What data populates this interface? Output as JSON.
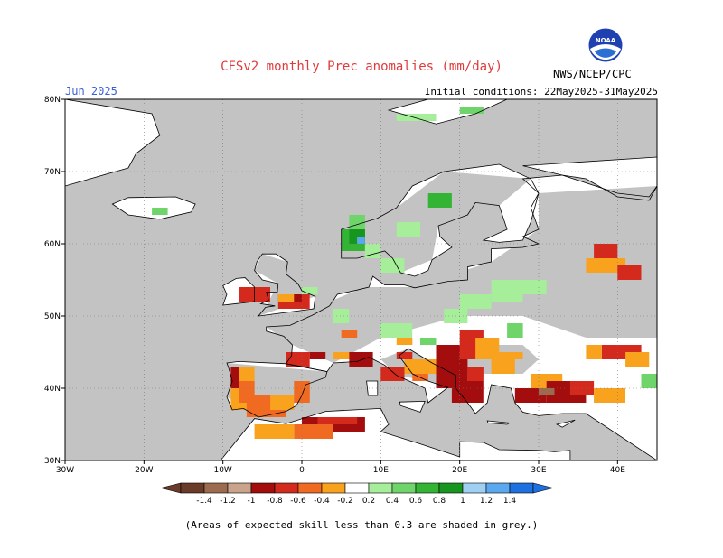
{
  "title": "CFSv2 monthly Prec anomalies (mm/day)",
  "month": "Jun 2025",
  "initial_conditions": "Initial conditions: 22May2025-31May2025",
  "agency": "NWS/NCEP/CPC",
  "logo_text": "NOAA",
  "footnote": "(Areas of expected skill less than 0.3 are shaded in grey.)",
  "lat_labels": [
    "80N",
    "70N",
    "60N",
    "50N",
    "40N",
    "30N"
  ],
  "lon_labels": [
    "30W",
    "20W",
    "10W",
    "0",
    "10E",
    "20E",
    "30E",
    "40E"
  ],
  "colorbar": {
    "labels": [
      "-1.4",
      "-1.2",
      "-1",
      "-0.8",
      "-0.6",
      "-0.4",
      "-0.2",
      "0.2",
      "0.4",
      "0.6",
      "0.8",
      "1",
      "1.2",
      "1.4"
    ],
    "colors": [
      "#6b3b2a",
      "#9c6a4e",
      "#c9a38c",
      "#a30d0d",
      "#d42a1e",
      "#f06a22",
      "#f8a21e",
      "#ffffff",
      "#a6ee9a",
      "#6fd46a",
      "#34b434",
      "#16961e",
      "#9fd0f4",
      "#5aa8ee",
      "#1e6fe0"
    ]
  },
  "colors": {
    "skill_grey": "#c3c3c3",
    "land_white": "#ffffff",
    "ocean_white": "#ffffff",
    "title_red": "#e03a3a",
    "month_blue": "#3a5fd8"
  }
}
